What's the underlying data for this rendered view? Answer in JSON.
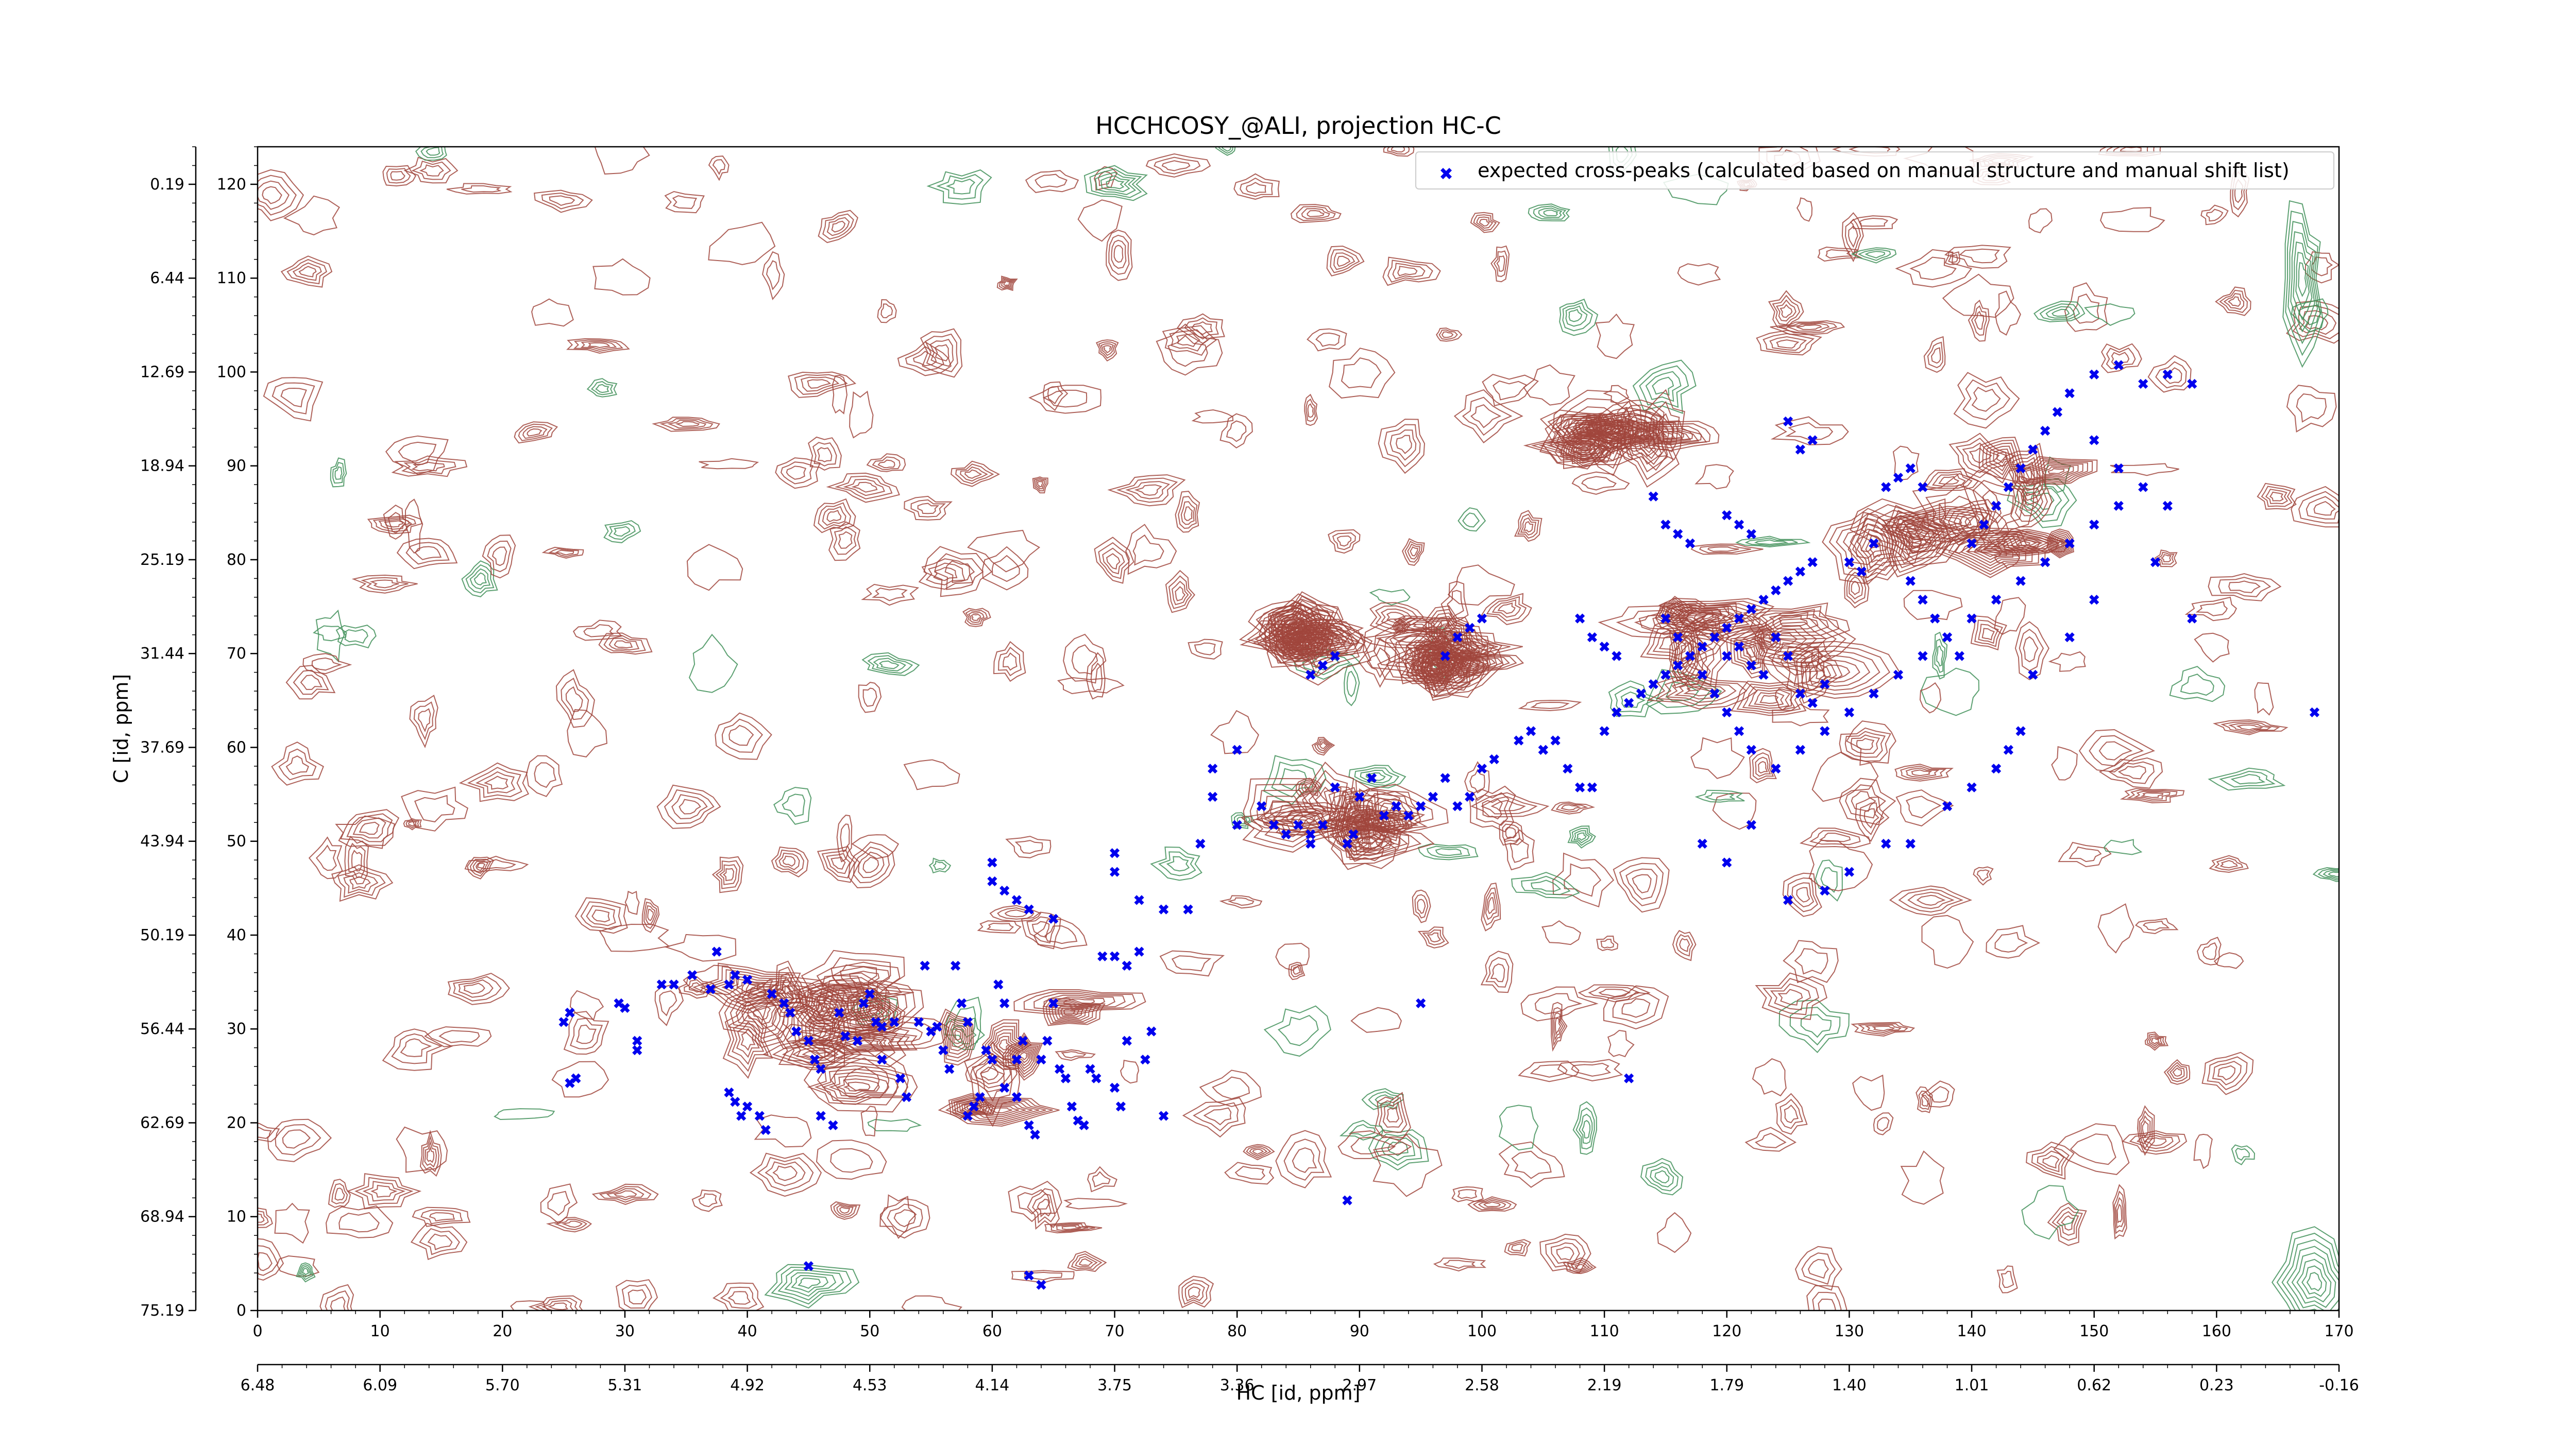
{
  "chart_data": {
    "type": "scatter",
    "title": "HCCHCOSY_@ALI, projection HC-C",
    "xlabel": "HC [id, ppm]",
    "ylabel": "C [id, ppm]",
    "xlim": [
      0,
      170
    ],
    "ylim": [
      0,
      120
    ],
    "x_ticks": [
      0,
      10,
      20,
      30,
      40,
      50,
      60,
      70,
      80,
      90,
      100,
      110,
      120,
      130,
      140,
      150,
      160,
      170
    ],
    "y_ticks": [
      0,
      10,
      20,
      30,
      40,
      50,
      60,
      70,
      80,
      90,
      100,
      110,
      120
    ],
    "x_secondary_ticks": [
      "6.48",
      "6.09",
      "5.70",
      "5.31",
      "4.92",
      "4.53",
      "4.14",
      "3.75",
      "3.36",
      "2.97",
      "2.58",
      "2.19",
      "1.79",
      "1.40",
      "1.01",
      "0.62",
      "0.23",
      "-0.16"
    ],
    "y_secondary_ticks": [
      "75.19",
      "68.94",
      "62.69",
      "56.44",
      "50.19",
      "43.94",
      "37.69",
      "31.44",
      "25.19",
      "18.94",
      "12.69",
      "6.44",
      "0.19"
    ],
    "legend": {
      "position": "top-right",
      "entries": [
        "expected cross-peaks (calculated based on manual structure and manual shift list)"
      ]
    },
    "colors": {
      "points": "#0000ee",
      "contour_positive": "#a0453c",
      "contour_negative": "#3f8f58",
      "frame": "#000000"
    },
    "series": [
      {
        "name": "expected cross-peaks (calculated based on manual structure and manual shift list)",
        "points": [
          [
            25,
            31
          ],
          [
            25.5,
            32
          ],
          [
            25.5,
            24.5
          ],
          [
            26,
            25
          ],
          [
            29.5,
            33
          ],
          [
            30,
            32.5
          ],
          [
            31,
            29
          ],
          [
            31,
            28
          ],
          [
            33,
            35
          ],
          [
            34,
            35
          ],
          [
            35.5,
            36
          ],
          [
            37,
            34.5
          ],
          [
            37.5,
            38.5
          ],
          [
            38.5,
            35
          ],
          [
            39,
            36
          ],
          [
            40,
            35.5
          ],
          [
            38.5,
            23.5
          ],
          [
            39,
            22.5
          ],
          [
            39.5,
            21
          ],
          [
            40,
            22
          ],
          [
            41,
            21
          ],
          [
            41.5,
            19.5
          ],
          [
            42,
            34
          ],
          [
            43,
            33
          ],
          [
            43.5,
            32
          ],
          [
            44,
            30
          ],
          [
            45,
            29
          ],
          [
            45.5,
            27
          ],
          [
            46,
            26
          ],
          [
            46,
            21
          ],
          [
            47,
            20
          ],
          [
            47.5,
            32
          ],
          [
            48,
            29.5
          ],
          [
            49,
            29
          ],
          [
            49.5,
            33
          ],
          [
            50,
            34
          ],
          [
            50.5,
            31
          ],
          [
            51,
            30.5
          ],
          [
            51,
            27
          ],
          [
            52,
            31
          ],
          [
            52.5,
            25
          ],
          [
            53,
            23
          ],
          [
            54,
            31
          ],
          [
            54.5,
            37
          ],
          [
            55,
            30
          ],
          [
            55.5,
            30.5
          ],
          [
            56,
            28
          ],
          [
            56.5,
            26
          ],
          [
            57,
            37
          ],
          [
            57.5,
            33
          ],
          [
            58,
            31
          ],
          [
            58,
            21
          ],
          [
            58.5,
            22
          ],
          [
            59,
            23
          ],
          [
            59.5,
            28
          ],
          [
            60,
            27
          ],
          [
            60.5,
            35
          ],
          [
            61,
            33
          ],
          [
            61,
            24
          ],
          [
            62,
            23
          ],
          [
            62,
            27
          ],
          [
            62.5,
            29
          ],
          [
            63,
            20
          ],
          [
            63.5,
            19
          ],
          [
            64,
            27
          ],
          [
            64.5,
            29
          ],
          [
            65,
            33
          ],
          [
            65.5,
            26
          ],
          [
            66,
            25
          ],
          [
            66.5,
            22
          ],
          [
            67,
            20.5
          ],
          [
            67.5,
            20
          ],
          [
            68,
            26
          ],
          [
            68.5,
            25
          ],
          [
            69,
            38
          ],
          [
            70,
            38
          ],
          [
            70,
            24
          ],
          [
            70.5,
            22
          ],
          [
            71,
            37
          ],
          [
            72,
            38.5
          ],
          [
            71,
            29
          ],
          [
            72.5,
            27
          ],
          [
            73,
            30
          ],
          [
            74,
            21
          ],
          [
            64,
            3
          ],
          [
            60,
            48
          ],
          [
            60,
            46
          ],
          [
            61,
            45
          ],
          [
            62,
            44
          ],
          [
            63,
            43
          ],
          [
            65,
            42
          ],
          [
            70,
            49
          ],
          [
            70,
            47
          ],
          [
            72,
            44
          ],
          [
            74,
            43
          ],
          [
            76,
            43
          ],
          [
            77,
            50
          ],
          [
            78,
            55
          ],
          [
            78,
            58
          ],
          [
            80,
            52
          ],
          [
            80,
            60
          ],
          [
            82,
            54
          ],
          [
            83,
            52
          ],
          [
            84,
            51
          ],
          [
            85,
            52
          ],
          [
            86,
            50
          ],
          [
            86,
            51
          ],
          [
            87,
            52
          ],
          [
            88,
            56
          ],
          [
            89,
            50
          ],
          [
            89.5,
            51
          ],
          [
            90,
            55
          ],
          [
            91,
            57
          ],
          [
            92,
            53
          ],
          [
            93,
            54
          ],
          [
            94,
            53
          ],
          [
            95,
            54
          ],
          [
            96,
            55
          ],
          [
            97,
            57
          ],
          [
            98,
            54
          ],
          [
            99,
            55
          ],
          [
            100,
            58
          ],
          [
            101,
            59
          ],
          [
            103,
            61
          ],
          [
            104,
            62
          ],
          [
            105,
            60
          ],
          [
            106,
            61
          ],
          [
            107,
            58
          ],
          [
            108,
            56
          ],
          [
            109,
            56
          ],
          [
            110,
            62
          ],
          [
            111,
            64
          ],
          [
            112,
            65
          ],
          [
            113,
            66
          ],
          [
            114,
            67
          ],
          [
            115,
            68
          ],
          [
            116,
            69
          ],
          [
            117,
            70
          ],
          [
            118,
            71
          ],
          [
            119,
            72
          ],
          [
            120,
            73
          ],
          [
            121,
            74
          ],
          [
            122,
            75
          ],
          [
            123,
            76
          ],
          [
            124,
            77
          ],
          [
            125,
            78
          ],
          [
            126,
            79
          ],
          [
            127,
            80
          ],
          [
            115,
            74
          ],
          [
            116,
            72
          ],
          [
            118,
            68
          ],
          [
            119,
            66
          ],
          [
            120,
            64
          ],
          [
            121,
            62
          ],
          [
            122,
            60
          ],
          [
            124,
            58
          ],
          [
            126,
            60
          ],
          [
            128,
            62
          ],
          [
            130,
            64
          ],
          [
            132,
            66
          ],
          [
            134,
            68
          ],
          [
            136,
            70
          ],
          [
            138,
            72
          ],
          [
            140,
            74
          ],
          [
            142,
            76
          ],
          [
            144,
            78
          ],
          [
            146,
            80
          ],
          [
            148,
            82
          ],
          [
            150,
            84
          ],
          [
            152,
            86
          ],
          [
            140,
            82
          ],
          [
            141,
            84
          ],
          [
            142,
            86
          ],
          [
            143,
            88
          ],
          [
            144,
            90
          ],
          [
            145,
            92
          ],
          [
            146,
            94
          ],
          [
            147,
            96
          ],
          [
            148,
            98
          ],
          [
            150,
            100
          ],
          [
            152,
            101
          ],
          [
            154,
            99
          ],
          [
            156,
            100
          ],
          [
            158,
            99
          ],
          [
            150,
            93
          ],
          [
            152,
            90
          ],
          [
            154,
            88
          ],
          [
            156,
            86
          ],
          [
            114,
            87
          ],
          [
            115,
            84
          ],
          [
            116,
            83
          ],
          [
            117,
            82
          ],
          [
            135,
            78
          ],
          [
            136,
            76
          ],
          [
            137,
            74
          ],
          [
            138,
            72
          ],
          [
            139,
            70
          ],
          [
            130,
            80
          ],
          [
            131,
            79
          ],
          [
            132,
            82
          ],
          [
            133,
            88
          ],
          [
            134,
            89
          ],
          [
            135,
            90
          ],
          [
            136,
            88
          ],
          [
            120,
            70
          ],
          [
            121,
            71
          ],
          [
            122,
            69
          ],
          [
            123,
            68
          ],
          [
            124,
            72
          ],
          [
            125,
            70
          ],
          [
            126,
            66
          ],
          [
            127,
            65
          ],
          [
            128,
            67
          ],
          [
            120,
            85
          ],
          [
            121,
            84
          ],
          [
            122,
            83
          ],
          [
            125,
            95
          ],
          [
            126,
            92
          ],
          [
            127,
            93
          ],
          [
            105,
            60
          ],
          [
            108,
            74
          ],
          [
            109,
            72
          ],
          [
            110,
            71
          ],
          [
            111,
            70
          ],
          [
            97,
            70
          ],
          [
            98,
            72
          ],
          [
            99,
            73
          ],
          [
            100,
            74
          ],
          [
            86,
            68
          ],
          [
            87,
            69
          ],
          [
            88,
            70
          ],
          [
            168,
            64
          ],
          [
            158,
            74
          ],
          [
            155,
            80
          ],
          [
            150,
            76
          ],
          [
            148,
            72
          ],
          [
            145,
            68
          ],
          [
            144,
            62
          ],
          [
            143,
            60
          ],
          [
            142,
            58
          ],
          [
            140,
            56
          ],
          [
            138,
            54
          ],
          [
            135,
            50
          ],
          [
            133,
            50
          ],
          [
            130,
            47
          ],
          [
            128,
            45
          ],
          [
            125,
            44
          ],
          [
            120,
            48
          ],
          [
            118,
            50
          ],
          [
            122,
            52
          ],
          [
            89,
            12
          ],
          [
            95,
            33
          ],
          [
            112,
            25
          ],
          [
            45,
            5
          ],
          [
            63,
            4
          ]
        ]
      }
    ]
  }
}
